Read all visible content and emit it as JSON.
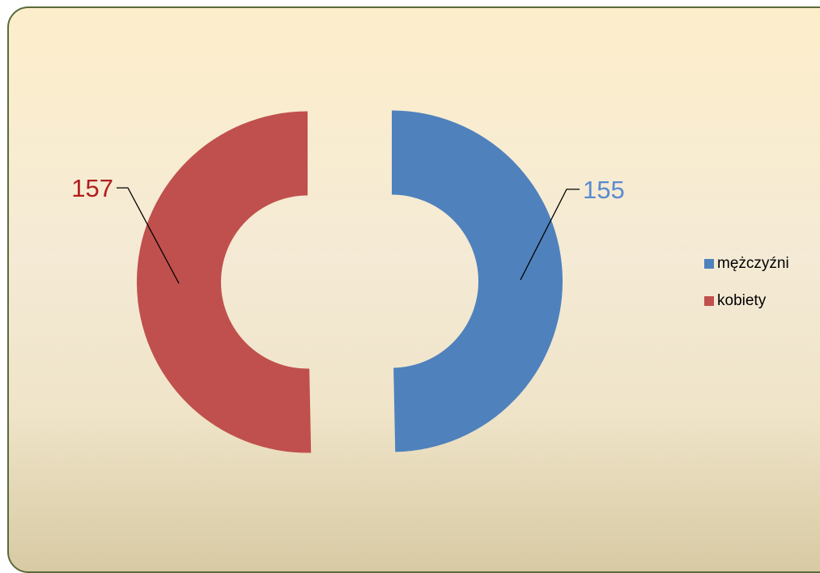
{
  "chart_data": {
    "type": "pie",
    "variant": "doughnut",
    "exploded": true,
    "title": "",
    "categories": [
      "mężczyźni",
      "kobiety"
    ],
    "values": [
      155,
      157
    ],
    "colors": [
      "#4f81bd",
      "#c0504d"
    ],
    "label_colors": [
      "#5b8ad0",
      "#b01e1e"
    ],
    "data_labels": [
      "155",
      "157"
    ],
    "legend_position": "right"
  },
  "legend": {
    "items": [
      {
        "label": "mężczyźni",
        "color": "#4f81bd"
      },
      {
        "label": "kobiety",
        "color": "#c0504d"
      }
    ]
  }
}
